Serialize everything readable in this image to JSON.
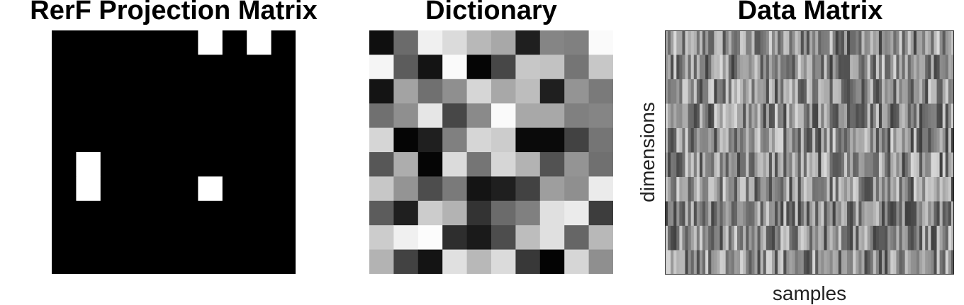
{
  "chart_data": [
    {
      "type": "heatmap",
      "title": "RerF Projection Matrix",
      "xlabel": "",
      "ylabel": "",
      "n_rows": 10,
      "n_cols": 10,
      "colormap": "gray",
      "values": [
        [
          0,
          0,
          0,
          0,
          0,
          0,
          1,
          0,
          1,
          0
        ],
        [
          0,
          0,
          0,
          0,
          0,
          0,
          0,
          0,
          0,
          0
        ],
        [
          0,
          0,
          0,
          0,
          0,
          0,
          0,
          0,
          0,
          0
        ],
        [
          0,
          0,
          0,
          0,
          0,
          0,
          0,
          0,
          0,
          0
        ],
        [
          0,
          0,
          0,
          0,
          0,
          0,
          0,
          0,
          0,
          0
        ],
        [
          0,
          1,
          0,
          0,
          0,
          0,
          0,
          0,
          0,
          0
        ],
        [
          0,
          1,
          0,
          0,
          0,
          0,
          1,
          0,
          0,
          0
        ],
        [
          0,
          0,
          0,
          0,
          0,
          0,
          0,
          0,
          0,
          0
        ],
        [
          0,
          0,
          0,
          0,
          0,
          0,
          0,
          0,
          0,
          0
        ],
        [
          0,
          0,
          0,
          0,
          0,
          0,
          0,
          0,
          0,
          0
        ]
      ]
    },
    {
      "type": "heatmap",
      "title": "Dictionary",
      "xlabel": "",
      "ylabel": "",
      "n_rows": 10,
      "n_cols": 10,
      "colormap": "gray",
      "values": [
        [
          0.06,
          0.42,
          0.94,
          0.86,
          0.72,
          0.66,
          0.12,
          0.52,
          0.5,
          0.98
        ],
        [
          0.96,
          0.36,
          0.08,
          0.98,
          0.02,
          0.28,
          0.78,
          0.76,
          0.46,
          0.78
        ],
        [
          0.08,
          0.64,
          0.44,
          0.56,
          0.84,
          0.66,
          0.74,
          0.12,
          0.58,
          0.48
        ],
        [
          0.44,
          0.56,
          0.9,
          0.28,
          0.54,
          0.98,
          0.66,
          0.66,
          0.5,
          0.52
        ],
        [
          0.84,
          0.02,
          0.12,
          0.5,
          0.84,
          0.8,
          0.04,
          0.04,
          0.26,
          0.46
        ],
        [
          0.34,
          0.68,
          0.02,
          0.86,
          0.46,
          0.84,
          0.7,
          0.32,
          0.58,
          0.44
        ],
        [
          0.78,
          0.58,
          0.3,
          0.48,
          0.08,
          0.12,
          0.26,
          0.62,
          0.56,
          0.92
        ],
        [
          0.36,
          0.12,
          0.8,
          0.7,
          0.2,
          0.42,
          0.5,
          0.88,
          0.92,
          0.24
        ],
        [
          0.8,
          0.94,
          0.99,
          0.18,
          0.1,
          0.3,
          0.74,
          0.88,
          0.4,
          0.72
        ],
        [
          0.7,
          0.26,
          0.08,
          0.88,
          0.72,
          0.86,
          0.22,
          0.01,
          0.84,
          0.56
        ]
      ]
    },
    {
      "type": "heatmap",
      "title": "Data Matrix",
      "xlabel": "samples",
      "ylabel": "dimensions",
      "n_rows": 10,
      "n_cols": 100,
      "colormap": "gray",
      "value_range": [
        0,
        1
      ]
    }
  ]
}
